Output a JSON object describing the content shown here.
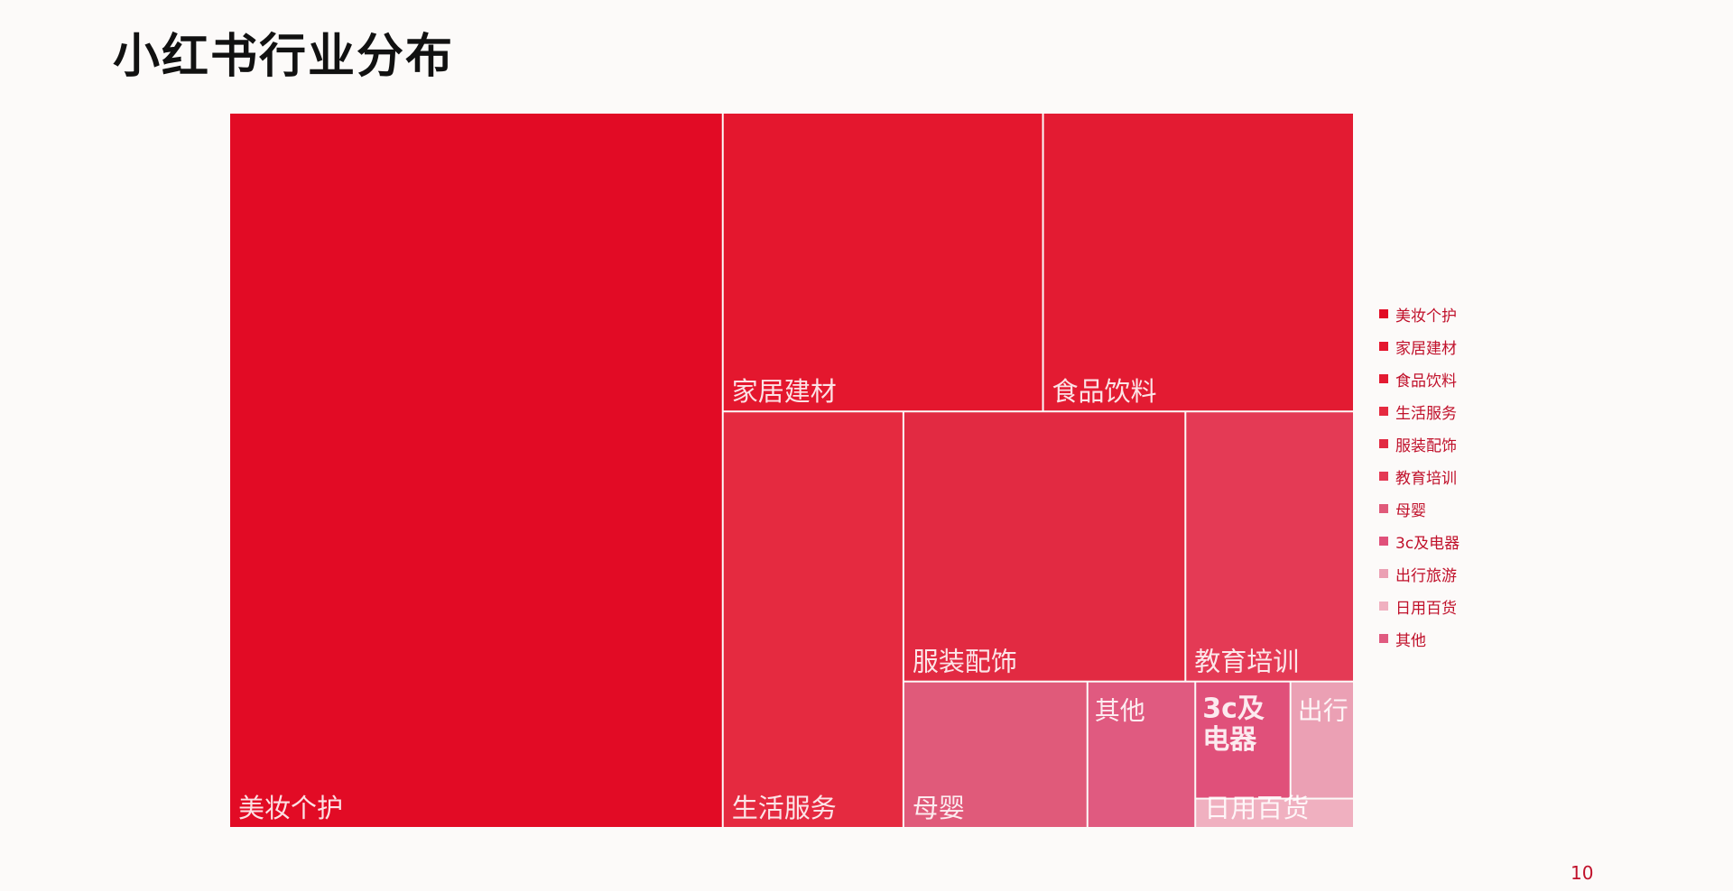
{
  "slide": {
    "title": "小红书行业分布",
    "page_number": "10"
  },
  "chart_data": {
    "type": "treemap",
    "title": "",
    "categories": [
      "美妆个护",
      "家居建材",
      "食品饮料",
      "生活服务",
      "服装配饰",
      "教育培训",
      "母婴",
      "3c及电器",
      "出行旅游",
      "日用百货",
      "其他"
    ],
    "values": [
      38.0,
      10.3,
      10.0,
      8.1,
      8.2,
      4.9,
      2.9,
      1.2,
      0.8,
      0.5,
      1.7
    ],
    "cell_labels": [
      "美妆个护",
      "家居建材",
      "食品饮料",
      "生活服务",
      "服装配饰",
      "教育培训",
      "母婴",
      "3c及电器",
      "出行",
      "日用百货",
      "其他"
    ],
    "colors": [
      "#e20b25",
      "#e4172e",
      "#e31b32",
      "#e52a40",
      "#e22a42",
      "#e43a55",
      "#e05a7a",
      "#e0507a",
      "#eba0b4",
      "#f0b0c0",
      "#e05a80"
    ],
    "legend": {
      "position": "right",
      "items": [
        "美妆个护",
        "家居建材",
        "食品饮料",
        "生活服务",
        "服装配饰",
        "教育培训",
        "母婴",
        "3c及电器",
        "出行旅游",
        "日用百货",
        "其他"
      ]
    }
  }
}
